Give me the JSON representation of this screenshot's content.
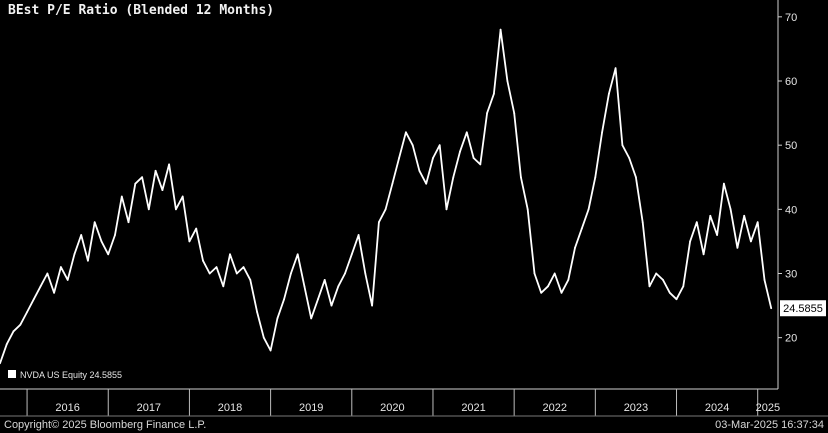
{
  "chart_data": {
    "type": "line",
    "title": "BEst P/E Ratio (Blended 12 Months)",
    "xlabel": "",
    "ylabel": "",
    "ylim": [
      12,
      72
    ],
    "xlim": [
      "2015-09",
      "2025-04"
    ],
    "y_ticks": [
      20,
      30,
      40,
      50,
      60,
      70
    ],
    "x_ticks": [
      "2016",
      "2017",
      "2018",
      "2019",
      "2020",
      "2021",
      "2022",
      "2023",
      "2024",
      "2025"
    ],
    "grid": false,
    "legend_position": "bottom-left",
    "series": [
      {
        "name": "NVDA US Equity",
        "color": "#ffffff",
        "last_value": "24.5855",
        "x": [
          "2015-09",
          "2015-10",
          "2015-11",
          "2015-12",
          "2016-01",
          "2016-02",
          "2016-03",
          "2016-04",
          "2016-05",
          "2016-06",
          "2016-07",
          "2016-08",
          "2016-09",
          "2016-10",
          "2016-11",
          "2016-12",
          "2017-01",
          "2017-02",
          "2017-03",
          "2017-04",
          "2017-05",
          "2017-06",
          "2017-07",
          "2017-08",
          "2017-09",
          "2017-10",
          "2017-11",
          "2017-12",
          "2018-01",
          "2018-02",
          "2018-03",
          "2018-04",
          "2018-05",
          "2018-06",
          "2018-07",
          "2018-08",
          "2018-09",
          "2018-10",
          "2018-11",
          "2018-12",
          "2019-01",
          "2019-02",
          "2019-03",
          "2019-04",
          "2019-05",
          "2019-06",
          "2019-07",
          "2019-08",
          "2019-09",
          "2019-10",
          "2019-11",
          "2019-12",
          "2020-01",
          "2020-02",
          "2020-03",
          "2020-04",
          "2020-05",
          "2020-06",
          "2020-07",
          "2020-08",
          "2020-09",
          "2020-10",
          "2020-11",
          "2020-12",
          "2021-01",
          "2021-02",
          "2021-03",
          "2021-04",
          "2021-05",
          "2021-06",
          "2021-07",
          "2021-08",
          "2021-09",
          "2021-10",
          "2021-11",
          "2021-12",
          "2022-01",
          "2022-02",
          "2022-03",
          "2022-04",
          "2022-05",
          "2022-06",
          "2022-07",
          "2022-08",
          "2022-09",
          "2022-10",
          "2022-11",
          "2022-12",
          "2023-01",
          "2023-02",
          "2023-03",
          "2023-04",
          "2023-05",
          "2023-06",
          "2023-07",
          "2023-08",
          "2023-09",
          "2023-10",
          "2023-11",
          "2023-12",
          "2024-01",
          "2024-02",
          "2024-03",
          "2024-04",
          "2024-05",
          "2024-06",
          "2024-07",
          "2024-08",
          "2024-09",
          "2024-10",
          "2024-11",
          "2024-12",
          "2025-01",
          "2025-02",
          "2025-03"
        ],
        "values": [
          16,
          19,
          21,
          22,
          24,
          26,
          28,
          30,
          27,
          31,
          29,
          33,
          36,
          32,
          38,
          35,
          33,
          36,
          42,
          38,
          44,
          45,
          40,
          46,
          43,
          47,
          40,
          42,
          35,
          37,
          32,
          30,
          31,
          28,
          33,
          30,
          31,
          29,
          24,
          20,
          18,
          23,
          26,
          30,
          33,
          28,
          23,
          26,
          29,
          25,
          28,
          30,
          33,
          36,
          30,
          25,
          38,
          40,
          44,
          48,
          52,
          50,
          46,
          44,
          48,
          50,
          40,
          45,
          49,
          52,
          48,
          47,
          55,
          58,
          68,
          60,
          55,
          45,
          40,
          30,
          27,
          28,
          30,
          27,
          29,
          34,
          37,
          40,
          45,
          52,
          58,
          62,
          50,
          48,
          45,
          38,
          28,
          30,
          29,
          27,
          26,
          28,
          35,
          38,
          33,
          39,
          36,
          44,
          40,
          34,
          39,
          35,
          38,
          29,
          24.5855
        ]
      }
    ]
  },
  "footer": {
    "copyright": "Copyright© 2025 Bloomberg Finance L.P.",
    "timestamp": "03-Mar-2025 16:37:34"
  }
}
